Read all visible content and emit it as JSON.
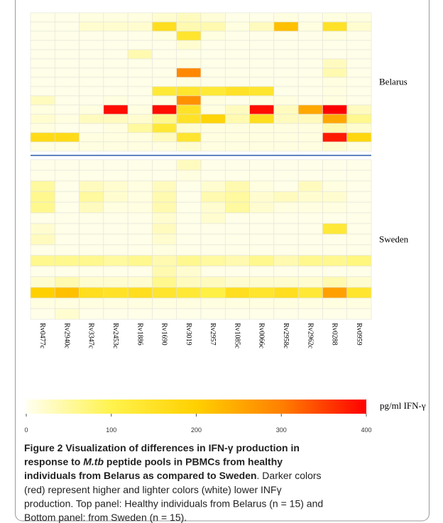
{
  "chart_data": {
    "type": "heatmap",
    "columns": [
      "Rv0477c",
      "Rv2940c",
      "Rv3347c",
      "Rv2453c",
      "Rv1886",
      "Rv1690",
      "Rv3019",
      "Rv2957",
      "Rv1085c",
      "Rv0066c",
      "Rv2958c",
      "Rv2962c",
      "Rv0288",
      "Rv0959"
    ],
    "panels": [
      {
        "name": "Belarus",
        "values": [
          [
            5,
            5,
            10,
            10,
            10,
            20,
            30,
            15,
            5,
            5,
            10,
            5,
            10,
            10
          ],
          [
            5,
            5,
            20,
            20,
            20,
            160,
            40,
            40,
            10,
            30,
            220,
            10,
            150,
            20
          ],
          [
            5,
            5,
            5,
            5,
            5,
            10,
            140,
            10,
            5,
            5,
            5,
            5,
            10,
            5
          ],
          [
            5,
            5,
            5,
            5,
            5,
            5,
            20,
            5,
            5,
            5,
            5,
            5,
            5,
            5
          ],
          [
            5,
            5,
            5,
            5,
            40,
            5,
            5,
            5,
            5,
            5,
            5,
            5,
            5,
            5
          ],
          [
            5,
            5,
            5,
            5,
            5,
            5,
            10,
            5,
            5,
            5,
            5,
            5,
            30,
            5
          ],
          [
            5,
            5,
            5,
            5,
            5,
            5,
            290,
            5,
            5,
            5,
            5,
            5,
            40,
            5
          ],
          [
            5,
            5,
            5,
            5,
            5,
            5,
            10,
            5,
            5,
            5,
            5,
            5,
            10,
            5
          ],
          [
            5,
            5,
            5,
            5,
            5,
            130,
            140,
            130,
            150,
            140,
            5,
            5,
            10,
            5
          ],
          [
            30,
            5,
            5,
            10,
            5,
            10,
            280,
            10,
            5,
            10,
            10,
            5,
            10,
            5
          ],
          [
            10,
            5,
            10,
            390,
            10,
            390,
            150,
            10,
            30,
            390,
            30,
            250,
            400,
            30
          ],
          [
            20,
            10,
            30,
            30,
            20,
            60,
            150,
            190,
            40,
            160,
            30,
            30,
            250,
            60
          ],
          [
            10,
            5,
            5,
            10,
            50,
            130,
            20,
            10,
            10,
            10,
            10,
            10,
            40,
            20
          ],
          [
            170,
            170,
            10,
            10,
            10,
            30,
            140,
            10,
            10,
            10,
            10,
            10,
            380,
            180
          ],
          [
            10,
            10,
            10,
            10,
            10,
            10,
            20,
            10,
            10,
            10,
            10,
            10,
            20,
            10
          ]
        ]
      },
      {
        "name": "Sweden",
        "values": [
          [
            5,
            5,
            5,
            5,
            5,
            5,
            30,
            5,
            5,
            5,
            5,
            5,
            5,
            5
          ],
          [
            5,
            5,
            5,
            5,
            5,
            5,
            10,
            5,
            5,
            5,
            5,
            5,
            5,
            5
          ],
          [
            50,
            5,
            30,
            20,
            10,
            30,
            5,
            20,
            40,
            10,
            5,
            30,
            10,
            5
          ],
          [
            60,
            5,
            50,
            20,
            10,
            40,
            5,
            40,
            50,
            20,
            30,
            20,
            20,
            5
          ],
          [
            60,
            5,
            30,
            10,
            10,
            40,
            5,
            20,
            50,
            20,
            10,
            10,
            10,
            5
          ],
          [
            5,
            5,
            5,
            5,
            5,
            20,
            5,
            20,
            5,
            5,
            5,
            5,
            5,
            5
          ],
          [
            20,
            5,
            5,
            5,
            5,
            30,
            5,
            5,
            5,
            5,
            5,
            5,
            130,
            5
          ],
          [
            30,
            5,
            5,
            5,
            5,
            20,
            5,
            5,
            5,
            5,
            5,
            5,
            5,
            5
          ],
          [
            5,
            5,
            5,
            5,
            5,
            10,
            5,
            5,
            5,
            5,
            5,
            5,
            5,
            5
          ],
          [
            60,
            60,
            60,
            50,
            60,
            40,
            60,
            50,
            40,
            60,
            40,
            60,
            60,
            70
          ],
          [
            5,
            5,
            5,
            5,
            5,
            40,
            20,
            5,
            5,
            5,
            5,
            5,
            5,
            5
          ],
          [
            20,
            40,
            20,
            20,
            20,
            60,
            30,
            30,
            20,
            20,
            20,
            20,
            40,
            20
          ],
          [
            200,
            220,
            160,
            150,
            160,
            140,
            130,
            110,
            160,
            140,
            160,
            130,
            260,
            140
          ],
          [
            10,
            10,
            10,
            10,
            10,
            10,
            10,
            10,
            10,
            10,
            10,
            10,
            10,
            10
          ],
          [
            5,
            20,
            5,
            5,
            5,
            5,
            5,
            5,
            5,
            5,
            5,
            5,
            5,
            5
          ]
        ]
      }
    ],
    "colorbar": {
      "label": "pg/ml IFN-γ",
      "lim": [
        0,
        400
      ],
      "ticks": [
        0,
        100,
        200,
        300,
        400
      ]
    },
    "colors": [
      "#fffff0",
      "#fff34d",
      "#ffd000",
      "#ff8000",
      "#ff0000"
    ],
    "separator_color": "#2a5ca8"
  },
  "caption": {
    "lines": [
      [
        {
          "text": "Figure 2 Visualization of differences in IFN-γ production in",
          "style": "bold"
        }
      ],
      [
        {
          "text": "response to ",
          "style": "bold"
        },
        {
          "text": "M.tb",
          "style": "bold-italic"
        },
        {
          "text": " peptide pools in PBMCs from healthy",
          "style": "bold"
        }
      ],
      [
        {
          "text": "individuals from Belarus as compared to Sweden",
          "style": "bold"
        },
        {
          "text": ". Darker colors",
          "style": "normal"
        }
      ],
      [
        {
          "text": "(red) represent higher and lighter colors (white) lower INFγ",
          "style": "normal"
        }
      ],
      [
        {
          "text": "production. Top panel: Healthy individuals from Belarus (n = 15) and",
          "style": "normal"
        }
      ],
      [
        {
          "text": "Bottom panel: from Sweden (n = 15).",
          "style": "normal"
        }
      ]
    ]
  }
}
